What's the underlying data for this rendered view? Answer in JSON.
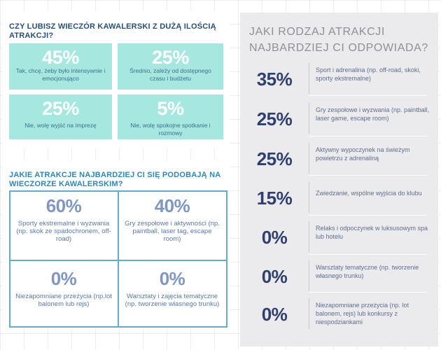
{
  "question1": {
    "title": "CZY LUBISZ WIECZÓR KAWALERSKI Z DUŻĄ ILOŚCIĄ ATRAKCJI?",
    "options": [
      {
        "pct": "45%",
        "label": "Tak, chcę, żeby było intensywnie i emocjonująco"
      },
      {
        "pct": "25%",
        "label": "Średnio, zależy od dostępnego czasu i budżetu"
      },
      {
        "pct": "25%",
        "label": "Nie, wolę wyjść na imprezę"
      },
      {
        "pct": "5%",
        "label": "Nie, wolę spokojne spotkanie i rozmowy"
      }
    ]
  },
  "question2": {
    "title": "JAKIE ATRAKCJE NAJBARDZIEJ CI SIĘ PODOBAJĄ NA WIECZORZE KAWALERSKIM?",
    "options": [
      {
        "pct": "60%",
        "label": "Sporty ekstremalne i wyzwania (np. skok ze spadochronem, off-road)"
      },
      {
        "pct": "40%",
        "label": "Gry zespołowe i aktywności (np. paintball, laser tag, escape room)"
      },
      {
        "pct": "0%",
        "label": "Niezapomniane przeżycia (np.lot balonem lub rejs)"
      },
      {
        "pct": "0%",
        "label": "Warsztaty i zajęcia tematyczne (np. tworzenie własnego trunku)"
      }
    ]
  },
  "question3": {
    "title": "JAKI RODZAJ ATRAKCJI NAJBARDZIEJ CI ODPOWIADA?",
    "options": [
      {
        "pct": "35%",
        "label": "Sport i adrenalina (np. off-road, skoki, sporty ekstremalne)"
      },
      {
        "pct": "25%",
        "label": "Gry zespołowe i wyzwania (np. paintball, laser game, escape room)"
      },
      {
        "pct": "25%",
        "label": "Aktywny wypoczynek na świeżym powietrzu z adrenaliną"
      },
      {
        "pct": "15%",
        "label": "Zwiedzanie, wspólne wyjścia do klubu"
      },
      {
        "pct": "0%",
        "label": "Relaks i odpoczynek w luksusowym spa lub hotelu"
      },
      {
        "pct": "0%",
        "label": "Warsztaty tematyczne (np. tworzenie własnego trunku)"
      },
      {
        "pct": "0%",
        "label": "Niezapomniane przeżycia (np. lot balonem, rejs) lub  konkursy z niespodziankami"
      }
    ]
  },
  "colors": {
    "tile_bg": "#a6e8e0",
    "accent_blue": "#2e86b9",
    "dark_navy": "#2f3f6e",
    "panel_gray": "#ebebed"
  }
}
